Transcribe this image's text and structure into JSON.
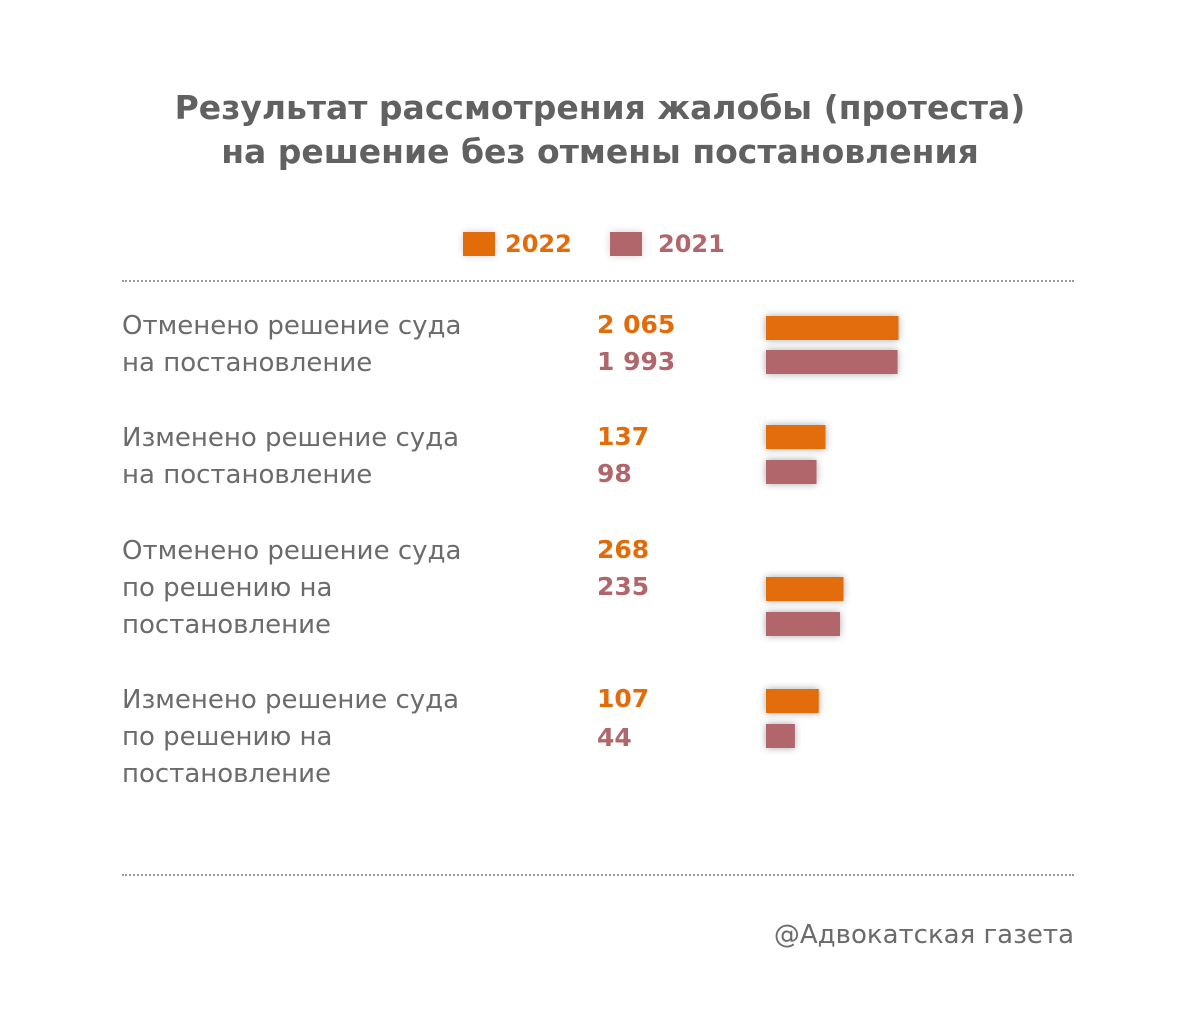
{
  "colors": {
    "y2022": "#e36c0a",
    "y2021": "#b0666a",
    "text": "#6b6b6b"
  },
  "chart_data": {
    "type": "bar",
    "orientation": "horizontal",
    "title_lines": [
      "Результат рассмотрения жалобы (протеста)",
      "на решение без отмены постановления"
    ],
    "legend_position": "top",
    "categories": [
      [
        "Отменено решение суда",
        "на постановление"
      ],
      [
        "Изменено решение суда",
        "на постановление"
      ],
      [
        "Отменено решение суда",
        "по решению на",
        "постановление"
      ],
      [
        "Изменено решение суда",
        "по решению на",
        "постановление"
      ]
    ],
    "series": [
      {
        "name": "2022",
        "values": [
          2065,
          137,
          268,
          107
        ],
        "labels": [
          "2 065",
          "137",
          "268",
          "107"
        ]
      },
      {
        "name": "2021",
        "values": [
          1993,
          98,
          235,
          44
        ],
        "labels": [
          "1 993",
          "98",
          "235",
          "44"
        ]
      }
    ]
  },
  "credit": "@Адвокатская газета"
}
